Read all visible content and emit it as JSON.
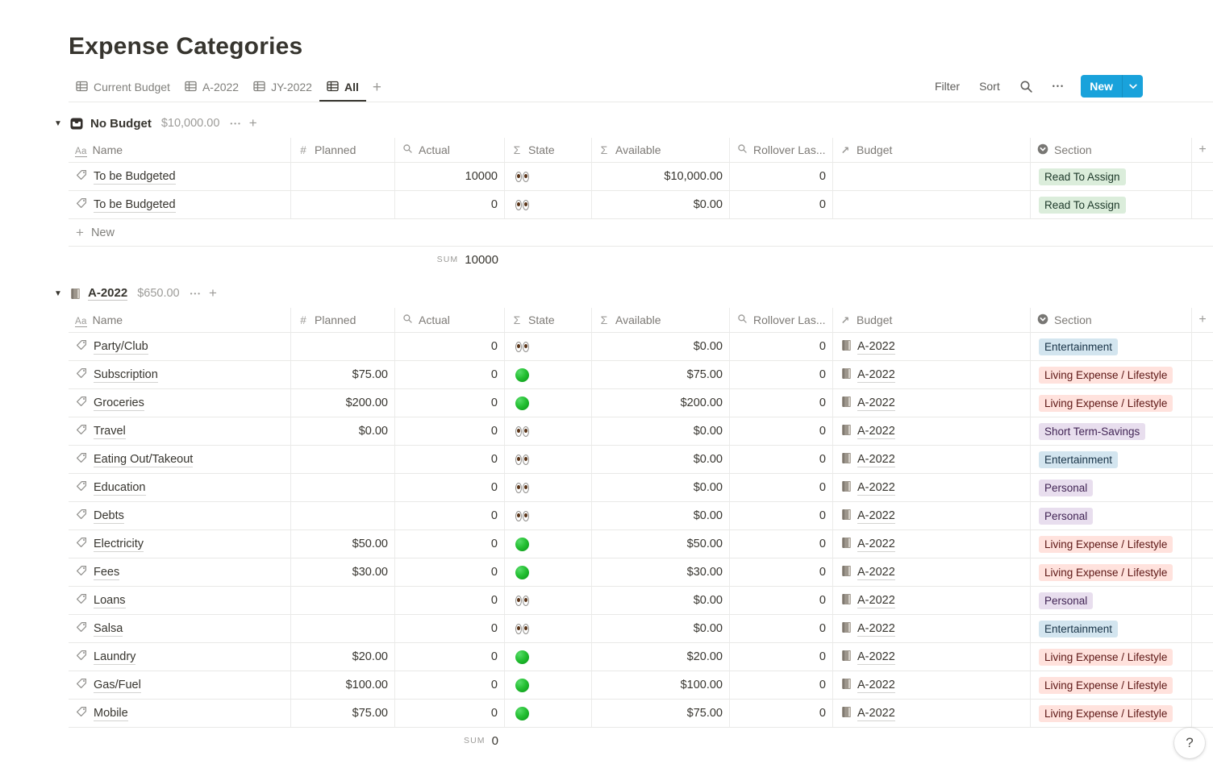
{
  "page_title": "Expense Categories",
  "tabs": {
    "items": [
      {
        "label": "Current Budget",
        "active": false
      },
      {
        "label": "A-2022",
        "active": false
      },
      {
        "label": "JY-2022",
        "active": false
      },
      {
        "label": "All",
        "active": true
      }
    ],
    "add_label": "+"
  },
  "toolbar": {
    "filter_label": "Filter",
    "sort_label": "Sort",
    "more_label": "•••",
    "new_label": "New"
  },
  "columns": [
    {
      "icon": "text-icon",
      "label": "Name"
    },
    {
      "icon": "number-icon",
      "label": "Planned"
    },
    {
      "icon": "rollup-icon",
      "label": "Actual"
    },
    {
      "icon": "formula-icon",
      "label": "State"
    },
    {
      "icon": "formula-icon",
      "label": "Available"
    },
    {
      "icon": "rollup-icon",
      "label": "Rollover Las..."
    },
    {
      "icon": "relation-icon",
      "label": "Budget"
    },
    {
      "icon": "select-icon",
      "label": "Section"
    },
    {
      "icon": "plus-icon",
      "label": "+"
    }
  ],
  "groups": [
    {
      "icon": "inbox",
      "title": "No Budget",
      "title_underlined": false,
      "amount": "$10,000.00",
      "rows": [
        {
          "name": "To be Budgeted",
          "planned": "",
          "actual": "10000",
          "state": "eyes",
          "available": "$10,000.00",
          "rollover": "0",
          "budget": "",
          "section": "Read To Assign",
          "section_color": "green"
        },
        {
          "name": "To be Budgeted",
          "planned": "",
          "actual": "0",
          "state": "eyes",
          "available": "$0.00",
          "rollover": "0",
          "budget": "",
          "section": "Read To Assign",
          "section_color": "green"
        }
      ],
      "new_label": "New",
      "sum_label": "SUM",
      "sum_value": "10000"
    },
    {
      "icon": "book",
      "title": "A-2022",
      "title_underlined": true,
      "amount": "$650.00",
      "rows": [
        {
          "name": "Party/Club",
          "planned": "",
          "actual": "0",
          "state": "eyes",
          "available": "$0.00",
          "rollover": "0",
          "budget": "A-2022",
          "section": "Entertainment",
          "section_color": "blue"
        },
        {
          "name": "Subscription",
          "planned": "$75.00",
          "actual": "0",
          "state": "green",
          "available": "$75.00",
          "rollover": "0",
          "budget": "A-2022",
          "section": "Living Expense / Lifestyle",
          "section_color": "red"
        },
        {
          "name": "Groceries",
          "planned": "$200.00",
          "actual": "0",
          "state": "green",
          "available": "$200.00",
          "rollover": "0",
          "budget": "A-2022",
          "section": "Living Expense / Lifestyle",
          "section_color": "red"
        },
        {
          "name": "Travel",
          "planned": "$0.00",
          "actual": "0",
          "state": "eyes",
          "available": "$0.00",
          "rollover": "0",
          "budget": "A-2022",
          "section": "Short Term-Savings",
          "section_color": "purple"
        },
        {
          "name": "Eating Out/Takeout",
          "planned": "",
          "actual": "0",
          "state": "eyes",
          "available": "$0.00",
          "rollover": "0",
          "budget": "A-2022",
          "section": "Entertainment",
          "section_color": "blue"
        },
        {
          "name": "Education",
          "planned": "",
          "actual": "0",
          "state": "eyes",
          "available": "$0.00",
          "rollover": "0",
          "budget": "A-2022",
          "section": "Personal",
          "section_color": "purple"
        },
        {
          "name": "Debts",
          "planned": "",
          "actual": "0",
          "state": "eyes",
          "available": "$0.00",
          "rollover": "0",
          "budget": "A-2022",
          "section": "Personal",
          "section_color": "purple"
        },
        {
          "name": "Electricity",
          "planned": "$50.00",
          "actual": "0",
          "state": "green",
          "available": "$50.00",
          "rollover": "0",
          "budget": "A-2022",
          "section": "Living Expense / Lifestyle",
          "section_color": "red"
        },
        {
          "name": "Fees",
          "planned": "$30.00",
          "actual": "0",
          "state": "green",
          "available": "$30.00",
          "rollover": "0",
          "budget": "A-2022",
          "section": "Living Expense / Lifestyle",
          "section_color": "red"
        },
        {
          "name": "Loans",
          "planned": "",
          "actual": "0",
          "state": "eyes",
          "available": "$0.00",
          "rollover": "0",
          "budget": "A-2022",
          "section": "Personal",
          "section_color": "purple"
        },
        {
          "name": "Salsa",
          "planned": "",
          "actual": "0",
          "state": "eyes",
          "available": "$0.00",
          "rollover": "0",
          "budget": "A-2022",
          "section": "Entertainment",
          "section_color": "blue"
        },
        {
          "name": "Laundry",
          "planned": "$20.00",
          "actual": "0",
          "state": "green",
          "available": "$20.00",
          "rollover": "0",
          "budget": "A-2022",
          "section": "Living Expense / Lifestyle",
          "section_color": "red"
        },
        {
          "name": "Gas/Fuel",
          "planned": "$100.00",
          "actual": "0",
          "state": "green",
          "available": "$100.00",
          "rollover": "0",
          "budget": "A-2022",
          "section": "Living Expense / Lifestyle",
          "section_color": "red"
        },
        {
          "name": "Mobile",
          "planned": "$75.00",
          "actual": "0",
          "state": "green",
          "available": "$75.00",
          "rollover": "0",
          "budget": "A-2022",
          "section": "Living Expense / Lifestyle",
          "section_color": "red"
        }
      ],
      "sum_label": "SUM",
      "sum_value": "0"
    }
  ],
  "colors": {
    "accent": "#19A2DB",
    "tag_colors": {
      "green": {
        "bg": "#DBEDDB",
        "text": "#1C3829"
      },
      "blue": {
        "bg": "#D3E5EF",
        "text": "#183347"
      },
      "red": {
        "bg": "#FFE2DD",
        "text": "#5D1715"
      },
      "purple": {
        "bg": "#E8DEEE",
        "text": "#412454"
      }
    }
  },
  "help_label": "?"
}
